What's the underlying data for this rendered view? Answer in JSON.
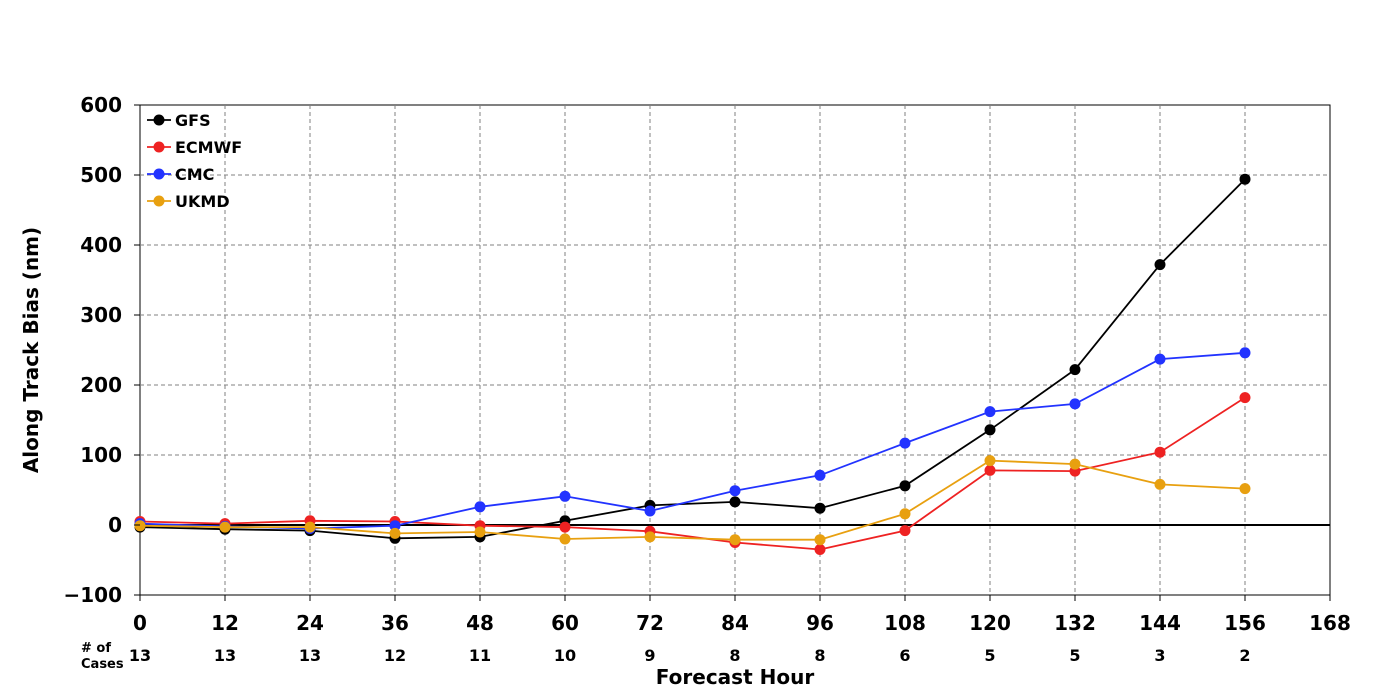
{
  "chart_data": {
    "type": "line",
    "xlabel": "Forecast Hour",
    "ylabel": "Along Track Bias (nm)",
    "xlim": [
      0,
      168
    ],
    "ylim": [
      -100,
      600
    ],
    "x_ticks": [
      "0",
      "12",
      "24",
      "36",
      "48",
      "60",
      "72",
      "84",
      "96",
      "108",
      "120",
      "132",
      "144",
      "156",
      "168"
    ],
    "y_ticks": [
      "600",
      "500",
      "400",
      "300",
      "200",
      "100",
      "0",
      "−100"
    ],
    "grid": true,
    "zero_line": true,
    "legend_position": "top-left",
    "cases_label": [
      "# of",
      "Cases"
    ],
    "cases": [
      "13",
      "13",
      "13",
      "12",
      "11",
      "10",
      "9",
      "8",
      "8",
      "6",
      "5",
      "5",
      "3",
      "2"
    ],
    "x": [
      0,
      12,
      24,
      36,
      48,
      60,
      72,
      84,
      96,
      108,
      120,
      132,
      144,
      156
    ],
    "series": [
      {
        "name": "GFS",
        "color": "#000000",
        "values": [
          -3,
          -6,
          -8,
          -19,
          -17,
          6,
          28,
          33,
          24,
          56,
          136,
          222,
          372,
          494
        ]
      },
      {
        "name": "ECMWF",
        "color": "#ee2222",
        "values": [
          5,
          2,
          6,
          5,
          -1,
          -3,
          -9,
          -25,
          -35,
          -8,
          78,
          77,
          104,
          182
        ]
      },
      {
        "name": "CMC",
        "color": "#2233ff",
        "values": [
          2,
          -2,
          -5,
          -1,
          26,
          41,
          20,
          49,
          71,
          117,
          162,
          173,
          237,
          246
        ]
      },
      {
        "name": "UKMD",
        "color": "#e8a010",
        "values": [
          -1,
          -3,
          -3,
          -12,
          -10,
          -20,
          -17,
          -21,
          -21,
          16,
          92,
          87,
          58,
          52
        ]
      }
    ]
  }
}
